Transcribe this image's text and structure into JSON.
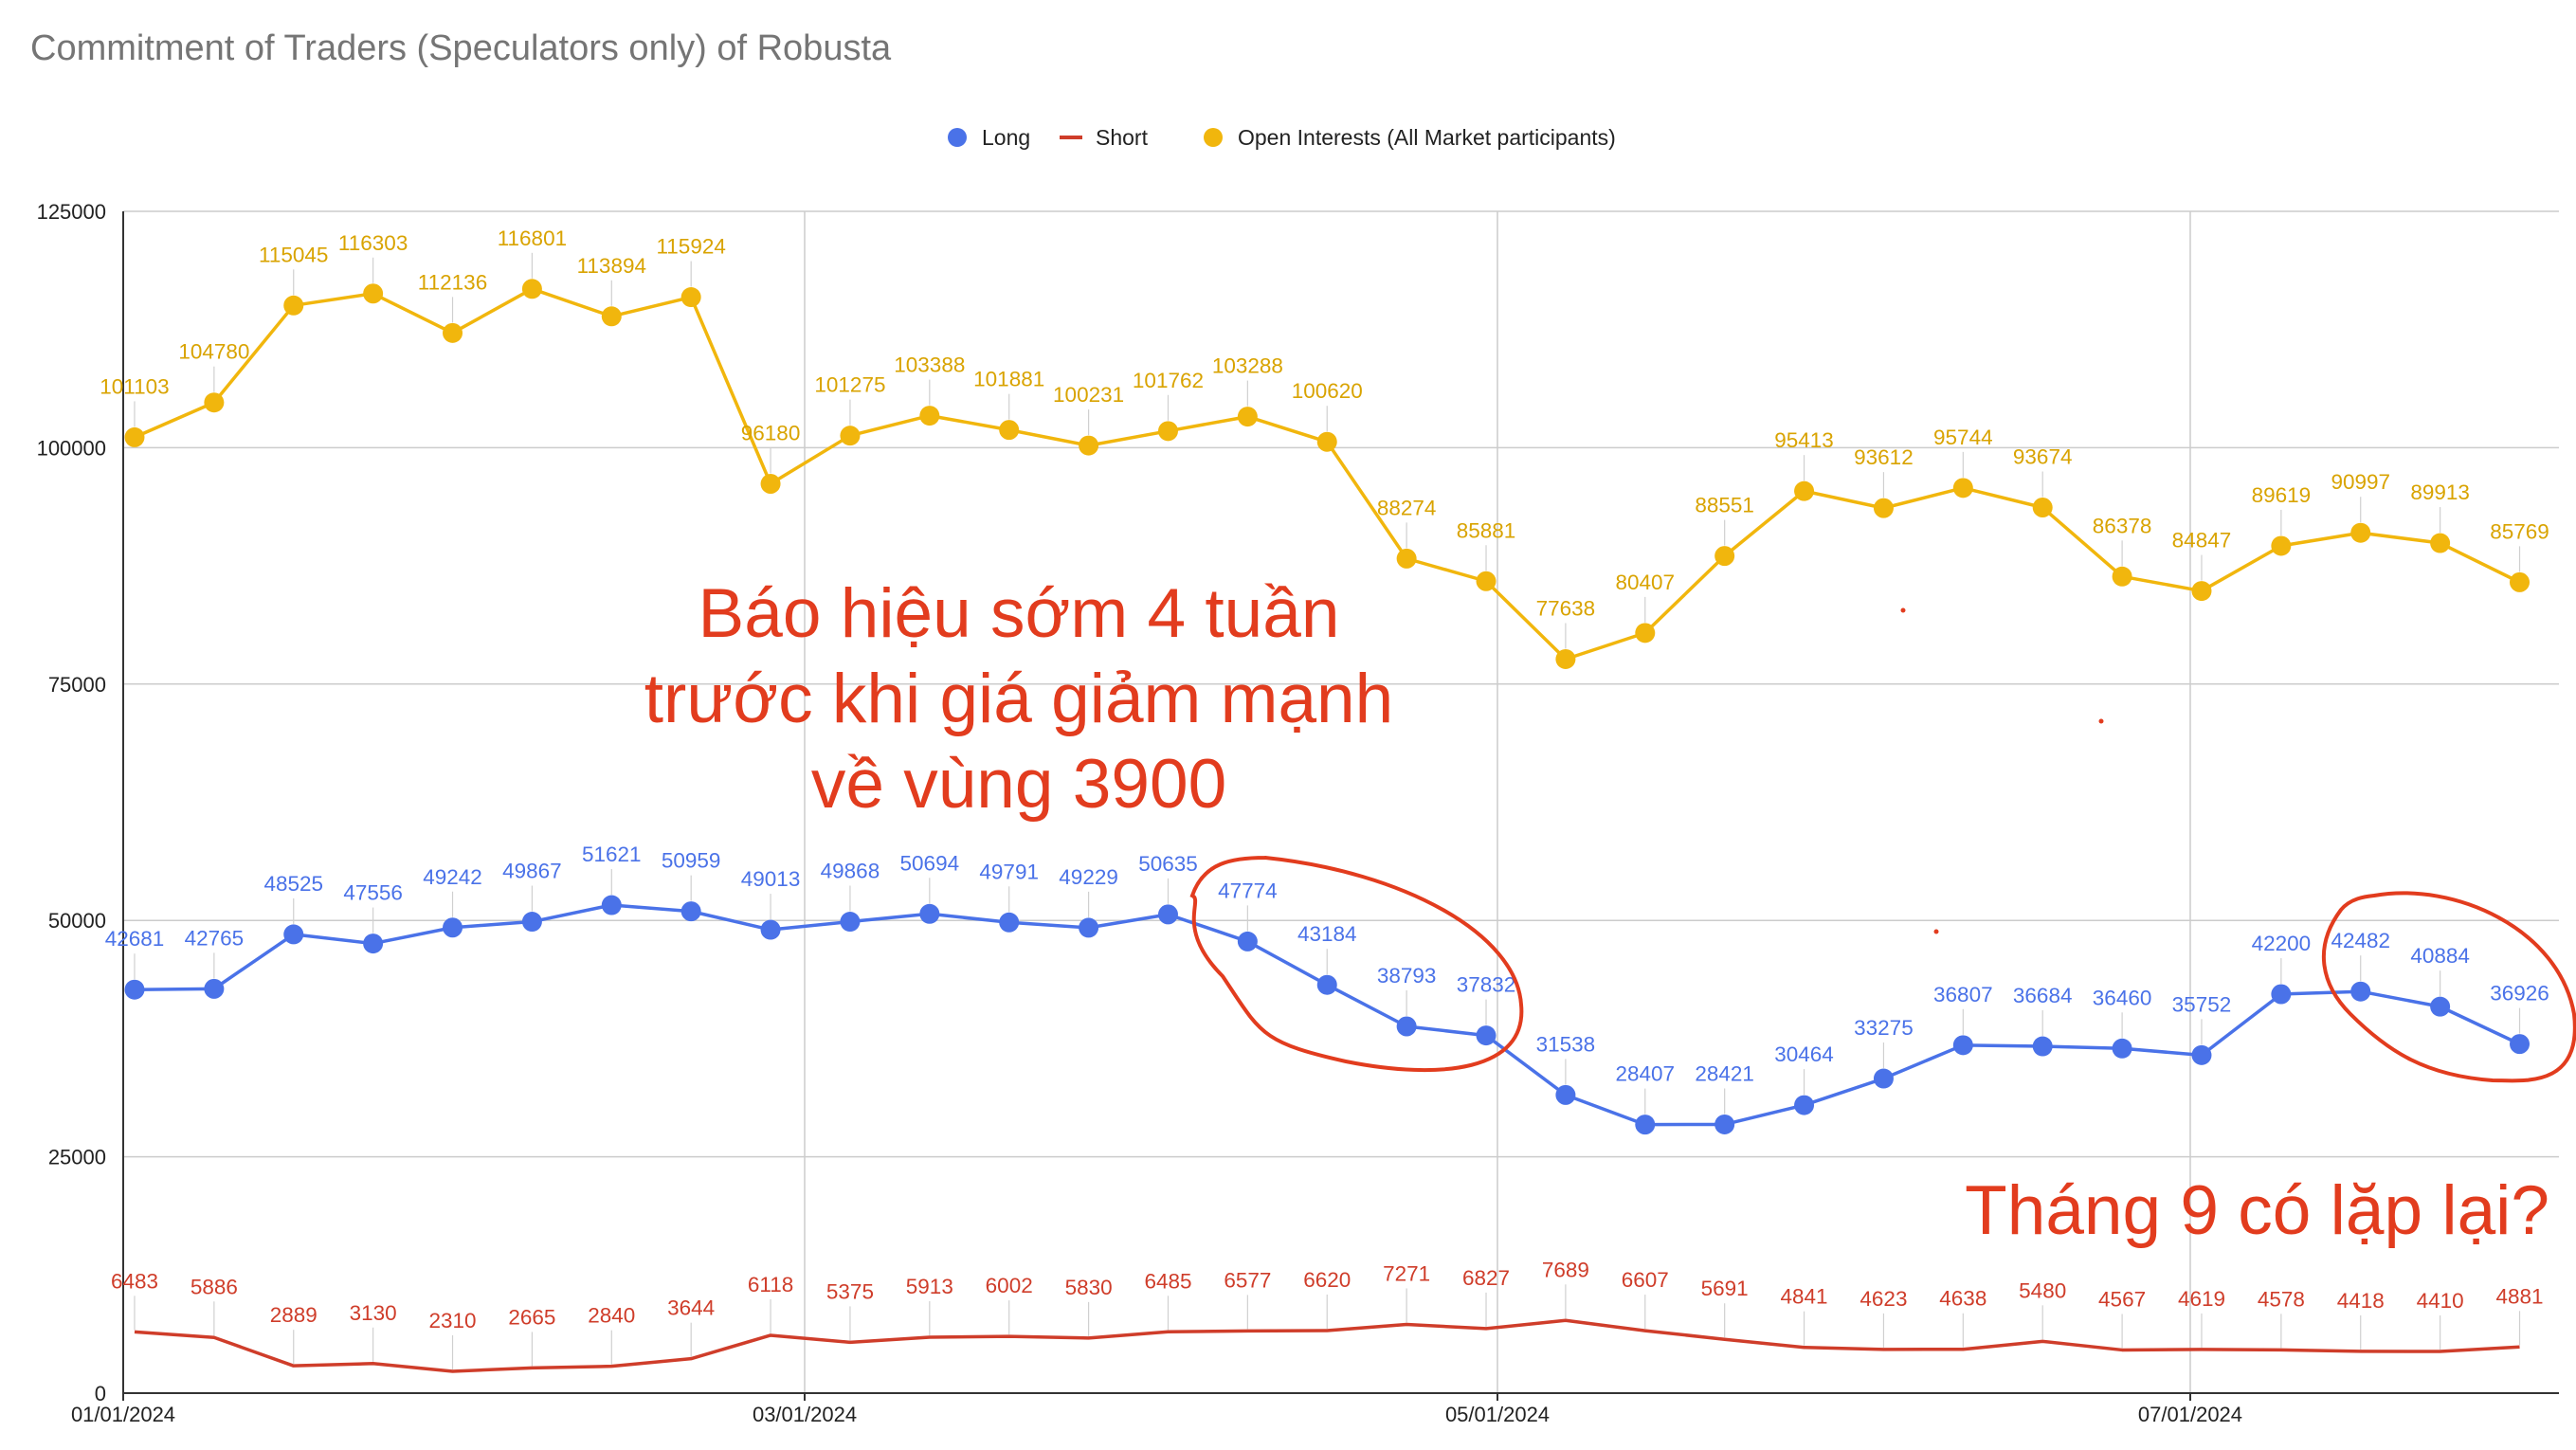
{
  "chart_data": {
    "type": "line",
    "title": "Commitment of Traders (Speculators only) of Robusta",
    "xlabel": "",
    "ylabel": "",
    "ylim": [
      0,
      125000
    ],
    "yticks": [
      "0",
      "25000",
      "50000",
      "75000",
      "100000",
      "125000"
    ],
    "xticks": [
      "01/01/2024",
      "03/01/2024",
      "05/01/2024",
      "07/01/2024"
    ],
    "grid": true,
    "legend_position": "top",
    "x": [
      "2024-01-02",
      "2024-01-09",
      "2024-01-16",
      "2024-01-23",
      "2024-01-30",
      "2024-02-06",
      "2024-02-13",
      "2024-02-20",
      "2024-02-27",
      "2024-03-05",
      "2024-03-12",
      "2024-03-19",
      "2024-03-26",
      "2024-04-02",
      "2024-04-09",
      "2024-04-16",
      "2024-04-23",
      "2024-04-30",
      "2024-05-07",
      "2024-05-14",
      "2024-05-21",
      "2024-05-28",
      "2024-06-04",
      "2024-06-11",
      "2024-06-18",
      "2024-06-25",
      "2024-07-02",
      "2024-07-09",
      "2024-07-16",
      "2024-07-23",
      "2024-07-30"
    ],
    "series": [
      {
        "name": "Long",
        "color": "#4a72e8",
        "marker": "circle",
        "values": [
          42681,
          42765,
          48525,
          47556,
          49242,
          49867,
          51621,
          50959,
          49013,
          49868,
          50694,
          49791,
          49229,
          50635,
          47774,
          43184,
          38793,
          37832,
          31538,
          28407,
          28421,
          30464,
          33275,
          36807,
          36684,
          36460,
          35752,
          42200,
          42482,
          40884,
          36926
        ]
      },
      {
        "name": "Short",
        "color": "#cf3d2a",
        "marker": "none",
        "values": [
          6483,
          5886,
          2889,
          3130,
          2310,
          2665,
          2840,
          3644,
          6118,
          5375,
          5913,
          6002,
          5830,
          6485,
          6577,
          6620,
          7271,
          6827,
          7689,
          6607,
          5691,
          4841,
          4623,
          4638,
          5480,
          4567,
          4619,
          4578,
          4418,
          4410,
          4881
        ]
      },
      {
        "name": "Open Interests (All Market participants)",
        "color": "#f1b60d",
        "marker": "circle",
        "values": [
          101103,
          104780,
          115045,
          116303,
          112136,
          116801,
          113894,
          115924,
          96180,
          101275,
          103388,
          101881,
          100231,
          101762,
          103288,
          100620,
          88274,
          85881,
          77638,
          80407,
          88551,
          95413,
          93612,
          95744,
          93674,
          86378,
          84847,
          89619,
          90997,
          89913,
          85769
        ]
      }
    ],
    "annotations": [
      {
        "lines": [
          "Báo hiệu sớm 4 tuần",
          "trước khi giá giảm mạnh",
          "về vùng 3900"
        ],
        "color": "#e23c1e"
      },
      {
        "lines": [
          "Tháng 9 có lặp lại?"
        ],
        "color": "#e23c1e"
      }
    ]
  }
}
